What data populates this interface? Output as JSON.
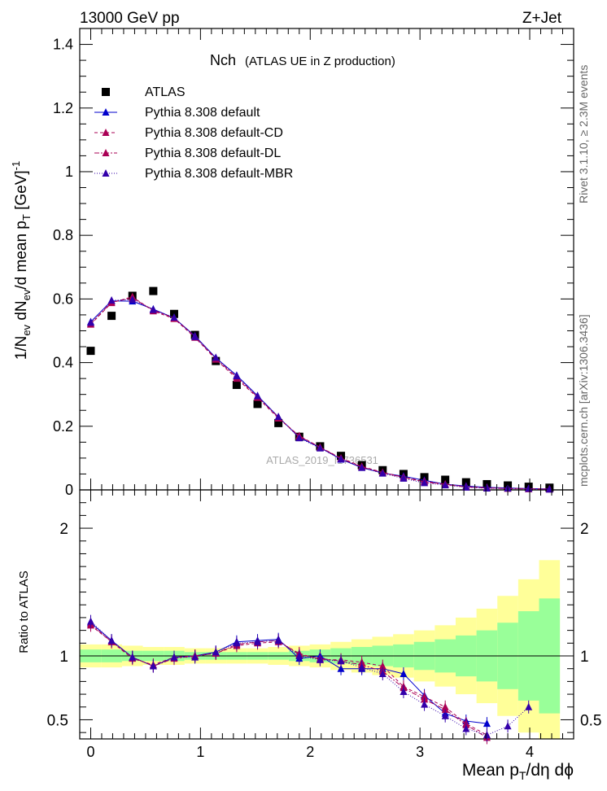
{
  "header": {
    "left": "13000 GeV pp",
    "right": "Z+Jet"
  },
  "side_labels": {
    "rivet": "Rivet 3.1.10, ≥ 2.3M events",
    "mcplots": "mcplots.cern.ch [arXiv:1306.3436]"
  },
  "watermark": "ATLAS_2019_I1736531",
  "chart_data": {
    "type": "scatter",
    "title_main": "Nch",
    "title_sub": "(ATLAS UE in Z production)",
    "ylabel_top": "1/N_ev dN_ev/d mean p_T [GeV]^-1",
    "ylabel_bottom": "Ratio to ATLAS",
    "xlabel": "Mean p_T/dη dϕ",
    "top_ylim": [
      0,
      1.45
    ],
    "top_yticks": [
      "0",
      "0.2",
      "0.4",
      "0.6",
      "0.8",
      "1",
      "1.2",
      "1.4"
    ],
    "ratio_ylim": [
      0.35,
      2.3
    ],
    "ratio_yticks": [
      "0.5",
      "1",
      "2"
    ],
    "xlim": [
      -0.1,
      4.4
    ],
    "xticks": [
      "0",
      "1",
      "2",
      "3",
      "4"
    ],
    "x": [
      0.0,
      0.19,
      0.38,
      0.57,
      0.76,
      0.95,
      1.14,
      1.33,
      1.52,
      1.71,
      1.9,
      2.09,
      2.28,
      2.47,
      2.66,
      2.85,
      3.04,
      3.23,
      3.42,
      3.61,
      3.8,
      3.99,
      4.18
    ],
    "series": [
      {
        "name": "ATLAS",
        "values": [
          0.437,
          0.547,
          0.61,
          0.625,
          0.553,
          0.487,
          0.405,
          0.33,
          0.27,
          0.21,
          0.167,
          0.137,
          0.107,
          0.078,
          0.062,
          0.05,
          0.04,
          0.032,
          0.024,
          0.018,
          0.014,
          0.01,
          0.007
        ],
        "ratio": [
          1,
          1,
          1,
          1,
          1,
          1,
          1,
          1,
          1,
          1,
          1,
          1,
          1,
          1,
          1,
          1,
          1,
          1,
          1,
          1,
          1,
          1,
          1
        ]
      },
      {
        "name": "Pythia 8.308 default",
        "values": [
          0.528,
          0.594,
          0.593,
          0.568,
          0.54,
          0.484,
          0.415,
          0.36,
          0.296,
          0.229,
          0.165,
          0.133,
          0.096,
          0.07,
          0.053,
          0.043,
          0.03,
          0.018,
          0.012,
          0.008,
          0.006,
          0.004,
          0.003
        ],
        "ratio": [
          1.26,
          1.12,
          0.99,
          0.92,
          0.99,
          1.0,
          1.03,
          1.11,
          1.12,
          1.13,
          0.98,
          1.0,
          0.9,
          0.9,
          0.9,
          0.86,
          0.69,
          0.55,
          0.49,
          0.47,
          null,
          null,
          null
        ]
      },
      {
        "name": "Pythia 8.308 default-CD",
        "values": [
          0.52,
          0.588,
          0.607,
          0.562,
          0.538,
          0.479,
          0.41,
          0.35,
          0.29,
          0.225,
          0.17,
          0.134,
          0.1,
          0.074,
          0.055,
          0.04,
          0.027,
          0.018,
          0.01,
          0.007,
          0.005,
          0.004,
          0.003
        ],
        "ratio": [
          1.24,
          1.11,
          0.98,
          0.93,
          0.99,
          1.0,
          1.02,
          1.08,
          1.1,
          1.11,
          1.02,
          0.97,
          0.97,
          0.95,
          0.92,
          0.76,
          0.68,
          0.6,
          0.47,
          0.38,
          null,
          null,
          null
        ]
      },
      {
        "name": "Pythia 8.308 default-DL",
        "values": [
          0.522,
          0.59,
          0.603,
          0.565,
          0.54,
          0.482,
          0.412,
          0.355,
          0.292,
          0.228,
          0.168,
          0.134,
          0.098,
          0.072,
          0.054,
          0.039,
          0.025,
          0.017,
          0.009,
          0.006,
          0.004,
          0.003,
          0.002
        ],
        "ratio": [
          1.25,
          1.11,
          0.99,
          0.92,
          0.98,
          1.0,
          1.02,
          1.09,
          1.11,
          1.12,
          1.01,
          0.98,
          0.96,
          0.93,
          0.88,
          0.75,
          0.66,
          0.58,
          0.46,
          0.36,
          null,
          null,
          null
        ]
      },
      {
        "name": "Pythia 8.308 default-MBR",
        "values": [
          0.526,
          0.596,
          0.598,
          0.566,
          0.542,
          0.481,
          0.416,
          0.358,
          0.295,
          0.23,
          0.163,
          0.131,
          0.097,
          0.07,
          0.052,
          0.036,
          0.022,
          0.015,
          0.008,
          0.005,
          0.005,
          0.004,
          0.002
        ],
        "ratio": [
          1.27,
          1.12,
          0.99,
          0.92,
          0.99,
          0.99,
          1.03,
          1.1,
          1.11,
          1.12,
          1.0,
          0.97,
          0.96,
          0.91,
          0.86,
          0.72,
          0.62,
          0.53,
          0.43,
          0.38,
          0.45,
          0.6,
          null
        ]
      }
    ],
    "band_inner": [
      0.05,
      0.05,
      0.04,
      0.04,
      0.04,
      0.03,
      0.03,
      0.03,
      0.03,
      0.03,
      0.04,
      0.05,
      0.06,
      0.07,
      0.08,
      0.09,
      0.11,
      0.13,
      0.16,
      0.2,
      0.26,
      0.35,
      0.45
    ],
    "band_outer": [
      0.09,
      0.09,
      0.08,
      0.07,
      0.07,
      0.06,
      0.06,
      0.06,
      0.06,
      0.07,
      0.08,
      0.09,
      0.11,
      0.13,
      0.15,
      0.17,
      0.2,
      0.24,
      0.3,
      0.37,
      0.47,
      0.6,
      0.75
    ],
    "legend_position": "top-left",
    "colors": {
      "data": "#000000",
      "default": "#0000cc",
      "cd": "#aa0055",
      "dl": "#aa0055",
      "mbr": "#3300aa",
      "band_inner": "#99ff99",
      "band_outer": "#ffff99"
    }
  }
}
